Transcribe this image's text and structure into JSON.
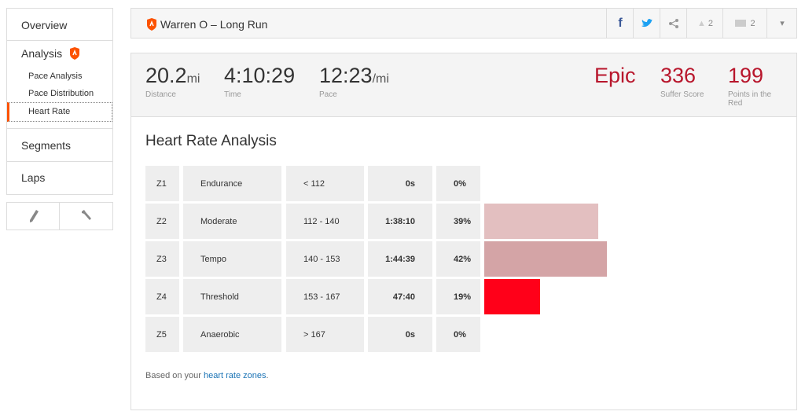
{
  "sidebar": {
    "overview": "Overview",
    "analysis": "Analysis",
    "sub_items": [
      "Pace Analysis",
      "Pace Distribution",
      "Heart Rate"
    ],
    "segments": "Segments",
    "laps": "Laps"
  },
  "header": {
    "title": "Warren O – Long Run",
    "kudos": "2",
    "comments": "2"
  },
  "stats": {
    "distance": {
      "value": "20.2",
      "unit": "mi",
      "label": "Distance"
    },
    "time": {
      "value": "4:10:29",
      "label": "Time"
    },
    "pace": {
      "value": "12:23",
      "unit": "/mi",
      "label": "Pace"
    },
    "suffer_level": "Epic",
    "suffer_score": {
      "value": "336",
      "label": "Suffer Score"
    },
    "points_in_red": {
      "value": "199",
      "label": "Points in the Red"
    }
  },
  "analysis": {
    "title": "Heart Rate Analysis",
    "zones": [
      {
        "zone": "Z1",
        "name": "Endurance",
        "range": "< 112",
        "time": "0s",
        "percent": {
          "value": 0,
          "label": "0%"
        },
        "color": "#e3bfc0"
      },
      {
        "zone": "Z2",
        "name": "Moderate",
        "range": "112 - 140",
        "time": "1:38:10",
        "percent": {
          "value": 39,
          "label": "39%"
        },
        "color": "#e3bfc0"
      },
      {
        "zone": "Z3",
        "name": "Tempo",
        "range": "140 - 153",
        "time": "1:44:39",
        "percent": {
          "value": 42,
          "label": "42%"
        },
        "color": "#d4a4a6"
      },
      {
        "zone": "Z4",
        "name": "Threshold",
        "range": "153 - 167",
        "time": "47:40",
        "percent": {
          "value": 19,
          "label": "19%"
        },
        "color": "#ff0019"
      },
      {
        "zone": "Z5",
        "name": "Anaerobic",
        "range": "> 167",
        "time": "0s",
        "percent": {
          "value": 0,
          "label": "0%"
        },
        "color": "#ff0019"
      }
    ],
    "footnote": {
      "text": "Based on your ",
      "link": "heart rate zones",
      "end": "."
    }
  }
}
